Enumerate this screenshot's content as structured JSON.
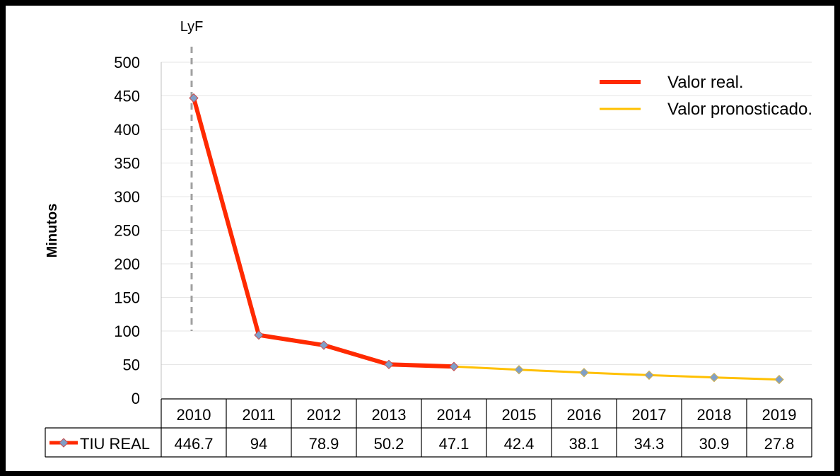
{
  "chart_data": {
    "type": "line",
    "title": "",
    "ylabel": "Minutos",
    "xlabel": "",
    "ylim": [
      0,
      500
    ],
    "yticks": [
      0,
      50,
      100,
      150,
      200,
      250,
      300,
      350,
      400,
      450,
      500
    ],
    "categories": [
      "2010",
      "2011",
      "2012",
      "2013",
      "2014",
      "2015",
      "2016",
      "2017",
      "2018",
      "2019"
    ],
    "annotation": {
      "label": "LyF",
      "at_category": "2010"
    },
    "table": {
      "row_label": "TIU REAL",
      "values": [
        "446.7",
        "94",
        "78.9",
        "50.2",
        "47.1",
        "42.4",
        "38.1",
        "34.3",
        "30.9",
        "27.8"
      ]
    },
    "series": [
      {
        "name": "TIU REAL",
        "values": [
          446.7,
          94,
          78.9,
          50.2,
          47.1,
          42.4,
          38.1,
          34.3,
          30.9,
          27.8
        ],
        "real_count": 5
      }
    ],
    "legend": {
      "position": "top-right",
      "items": [
        {
          "label": "Valor real.",
          "color": "#ff2a00"
        },
        {
          "label": "Valor pronosticado.",
          "color": "#ffc000"
        }
      ]
    },
    "colors": {
      "real": "#ff2a00",
      "forecast": "#ffc000",
      "marker": "#7f9fc8",
      "grid": "#e6e6e6",
      "annotation_line": "#a0a0a0"
    },
    "grid": true
  }
}
